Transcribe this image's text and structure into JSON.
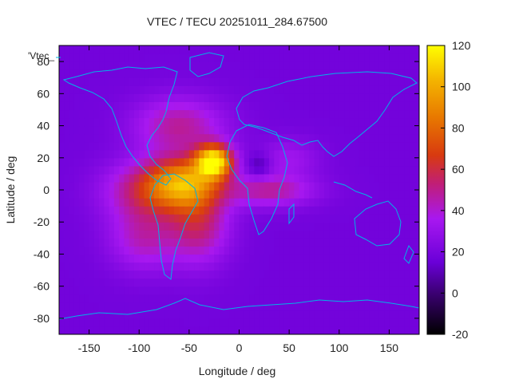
{
  "chart_data": {
    "type": "heatmap",
    "title": "VTEC / TECU 20251011_284.67500",
    "xlabel": "Longitude / deg",
    "ylabel": "Latitude / deg",
    "legend_label": "'Vtec_",
    "xlim": [
      -180,
      180
    ],
    "ylim": [
      -90,
      90
    ],
    "x_ticks": [
      -150,
      -100,
      -50,
      0,
      50,
      100,
      150
    ],
    "y_ticks": [
      -80,
      -60,
      -40,
      -20,
      0,
      20,
      40,
      60,
      80
    ],
    "colorbar": {
      "min": -20,
      "max": 120,
      "ticks": [
        -20,
        0,
        20,
        40,
        60,
        80,
        100,
        120
      ]
    },
    "background_level": 18,
    "peak_location": {
      "lon": -25,
      "lat": 18,
      "value": 115
    },
    "overlay": "coastlines",
    "colors": {
      "overlay": "#00b4e6",
      "frame": "#000000"
    }
  }
}
